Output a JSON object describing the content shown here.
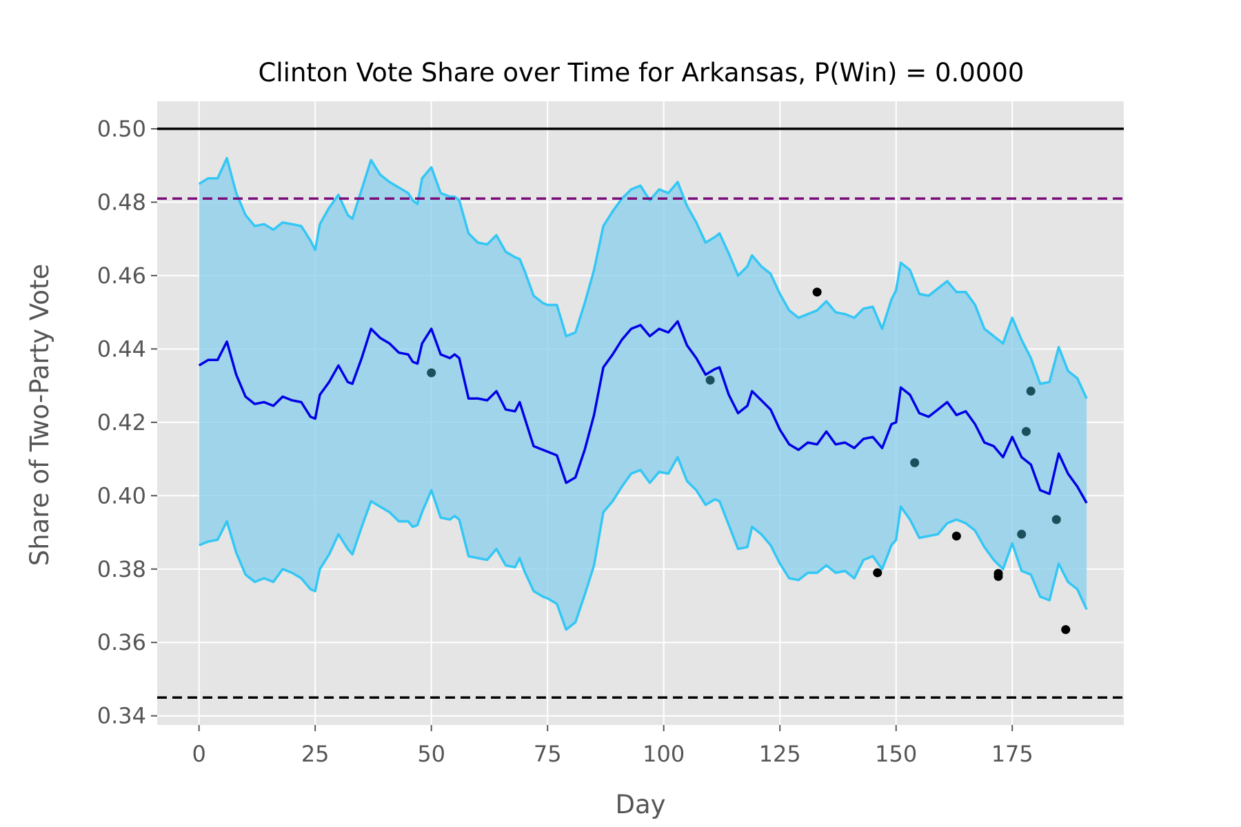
{
  "chart_data": {
    "type": "line",
    "title": "Clinton Vote Share over Time for Arkansas, P(Win) = 0.0000",
    "xlabel": "Day",
    "ylabel": "Share of Two-Party Vote",
    "xlim": [
      -9,
      199
    ],
    "ylim": [
      0.3375,
      0.5075
    ],
    "xticks": [
      0,
      25,
      50,
      75,
      100,
      125,
      150,
      175
    ],
    "xtick_labels": [
      "0",
      "25",
      "50",
      "75",
      "100",
      "125",
      "150",
      "175"
    ],
    "yticks": [
      0.34,
      0.36,
      0.38,
      0.4,
      0.42,
      0.44,
      0.46,
      0.48,
      0.5
    ],
    "ytick_labels": [
      "0.34",
      "0.36",
      "0.38",
      "0.40",
      "0.42",
      "0.44",
      "0.46",
      "0.48",
      "0.50"
    ],
    "grid": true,
    "reference_lines": [
      {
        "y": 0.5,
        "style": "solid",
        "color": "#000000"
      },
      {
        "y": 0.481,
        "style": "dashed",
        "color": "#7b0c7b"
      },
      {
        "y": 0.345,
        "style": "dashed",
        "color": "#000000"
      }
    ],
    "mean_series": {
      "color": "#0000e6",
      "points": [
        [
          0,
          0.4355
        ],
        [
          2,
          0.437
        ],
        [
          4,
          0.437
        ],
        [
          6,
          0.442
        ],
        [
          8,
          0.433
        ],
        [
          10,
          0.427
        ],
        [
          12,
          0.425
        ],
        [
          14,
          0.4255
        ],
        [
          16,
          0.4245
        ],
        [
          18,
          0.427
        ],
        [
          20,
          0.426
        ],
        [
          22,
          0.4255
        ],
        [
          24,
          0.4215
        ],
        [
          25,
          0.421
        ],
        [
          26,
          0.4275
        ],
        [
          28,
          0.431
        ],
        [
          30,
          0.4355
        ],
        [
          32,
          0.431
        ],
        [
          33,
          0.4305
        ],
        [
          35,
          0.4375
        ],
        [
          37,
          0.4455
        ],
        [
          39,
          0.443
        ],
        [
          41,
          0.4415
        ],
        [
          43,
          0.439
        ],
        [
          45,
          0.4385
        ],
        [
          46,
          0.4365
        ],
        [
          47,
          0.436
        ],
        [
          48,
          0.4415
        ],
        [
          50,
          0.4455
        ],
        [
          52,
          0.4385
        ],
        [
          54,
          0.4375
        ],
        [
          55,
          0.4385
        ],
        [
          56,
          0.4375
        ],
        [
          58,
          0.4265
        ],
        [
          60,
          0.4265
        ],
        [
          62,
          0.426
        ],
        [
          64,
          0.4285
        ],
        [
          66,
          0.4235
        ],
        [
          68,
          0.423
        ],
        [
          69,
          0.4255
        ],
        [
          70,
          0.4215
        ],
        [
          72,
          0.4135
        ],
        [
          74,
          0.4125
        ],
        [
          75,
          0.412
        ],
        [
          77,
          0.411
        ],
        [
          79,
          0.4035
        ],
        [
          81,
          0.405
        ],
        [
          83,
          0.4125
        ],
        [
          85,
          0.422
        ],
        [
          87,
          0.435
        ],
        [
          89,
          0.4385
        ],
        [
          91,
          0.4425
        ],
        [
          93,
          0.4455
        ],
        [
          95,
          0.4465
        ],
        [
          97,
          0.4435
        ],
        [
          99,
          0.4455
        ],
        [
          101,
          0.4445
        ],
        [
          103,
          0.4475
        ],
        [
          105,
          0.441
        ],
        [
          107,
          0.4375
        ],
        [
          109,
          0.433
        ],
        [
          111,
          0.4345
        ],
        [
          112,
          0.435
        ],
        [
          114,
          0.4275
        ],
        [
          116,
          0.4225
        ],
        [
          118,
          0.4245
        ],
        [
          119,
          0.4285
        ],
        [
          121,
          0.426
        ],
        [
          123,
          0.4235
        ],
        [
          125,
          0.418
        ],
        [
          127,
          0.414
        ],
        [
          129,
          0.4125
        ],
        [
          131,
          0.4145
        ],
        [
          133,
          0.414
        ],
        [
          135,
          0.4175
        ],
        [
          137,
          0.414
        ],
        [
          139,
          0.4145
        ],
        [
          141,
          0.413
        ],
        [
          143,
          0.4155
        ],
        [
          145,
          0.416
        ],
        [
          147,
          0.413
        ],
        [
          149,
          0.4195
        ],
        [
          150,
          0.42
        ],
        [
          151,
          0.4295
        ],
        [
          153,
          0.4275
        ],
        [
          155,
          0.4225
        ],
        [
          157,
          0.4215
        ],
        [
          159,
          0.4235
        ],
        [
          161,
          0.4255
        ],
        [
          163,
          0.422
        ],
        [
          165,
          0.423
        ],
        [
          167,
          0.4195
        ],
        [
          169,
          0.4145
        ],
        [
          171,
          0.4135
        ],
        [
          173,
          0.4105
        ],
        [
          175,
          0.416
        ],
        [
          177,
          0.4105
        ],
        [
          179,
          0.4085
        ],
        [
          181,
          0.4015
        ],
        [
          183,
          0.4005
        ],
        [
          185,
          0.4115
        ],
        [
          187,
          0.406
        ],
        [
          189,
          0.4025
        ],
        [
          191,
          0.398
        ]
      ]
    },
    "upper_series": {
      "color": "#33c7f5",
      "points": [
        [
          0,
          0.485
        ],
        [
          2,
          0.4865
        ],
        [
          4,
          0.4865
        ],
        [
          6,
          0.492
        ],
        [
          8,
          0.4825
        ],
        [
          10,
          0.4765
        ],
        [
          12,
          0.4735
        ],
        [
          14,
          0.474
        ],
        [
          16,
          0.4725
        ],
        [
          18,
          0.4745
        ],
        [
          20,
          0.474
        ],
        [
          22,
          0.4735
        ],
        [
          24,
          0.4695
        ],
        [
          25,
          0.467
        ],
        [
          26,
          0.474
        ],
        [
          28,
          0.4785
        ],
        [
          30,
          0.482
        ],
        [
          32,
          0.4765
        ],
        [
          33,
          0.4755
        ],
        [
          35,
          0.4835
        ],
        [
          37,
          0.4915
        ],
        [
          39,
          0.4875
        ],
        [
          41,
          0.4855
        ],
        [
          43,
          0.484
        ],
        [
          45,
          0.4825
        ],
        [
          46,
          0.4805
        ],
        [
          47,
          0.4795
        ],
        [
          48,
          0.4865
        ],
        [
          50,
          0.4895
        ],
        [
          52,
          0.4825
        ],
        [
          54,
          0.4815
        ],
        [
          55,
          0.4815
        ],
        [
          56,
          0.4805
        ],
        [
          58,
          0.4715
        ],
        [
          60,
          0.469
        ],
        [
          62,
          0.4685
        ],
        [
          64,
          0.471
        ],
        [
          66,
          0.4665
        ],
        [
          68,
          0.465
        ],
        [
          69,
          0.4645
        ],
        [
          70,
          0.4615
        ],
        [
          72,
          0.4545
        ],
        [
          74,
          0.4525
        ],
        [
          75,
          0.452
        ],
        [
          77,
          0.452
        ],
        [
          79,
          0.4435
        ],
        [
          81,
          0.4445
        ],
        [
          83,
          0.4525
        ],
        [
          85,
          0.4615
        ],
        [
          87,
          0.4735
        ],
        [
          89,
          0.4775
        ],
        [
          91,
          0.481
        ],
        [
          93,
          0.4835
        ],
        [
          95,
          0.4845
        ],
        [
          97,
          0.4805
        ],
        [
          99,
          0.4835
        ],
        [
          101,
          0.4825
        ],
        [
          103,
          0.4855
        ],
        [
          105,
          0.479
        ],
        [
          107,
          0.4745
        ],
        [
          109,
          0.469
        ],
        [
          111,
          0.4705
        ],
        [
          112,
          0.4715
        ],
        [
          114,
          0.466
        ],
        [
          116,
          0.46
        ],
        [
          118,
          0.4625
        ],
        [
          119,
          0.4655
        ],
        [
          121,
          0.4625
        ],
        [
          123,
          0.4605
        ],
        [
          125,
          0.455
        ],
        [
          127,
          0.4505
        ],
        [
          129,
          0.4485
        ],
        [
          131,
          0.4495
        ],
        [
          133,
          0.4505
        ],
        [
          135,
          0.453
        ],
        [
          137,
          0.45
        ],
        [
          139,
          0.4495
        ],
        [
          141,
          0.4485
        ],
        [
          143,
          0.451
        ],
        [
          145,
          0.4515
        ],
        [
          147,
          0.4455
        ],
        [
          149,
          0.4535
        ],
        [
          150,
          0.456
        ],
        [
          151,
          0.4635
        ],
        [
          153,
          0.4615
        ],
        [
          155,
          0.455
        ],
        [
          157,
          0.4545
        ],
        [
          159,
          0.4565
        ],
        [
          161,
          0.4585
        ],
        [
          163,
          0.4555
        ],
        [
          165,
          0.4555
        ],
        [
          167,
          0.452
        ],
        [
          169,
          0.4455
        ],
        [
          171,
          0.4435
        ],
        [
          173,
          0.4415
        ],
        [
          175,
          0.4485
        ],
        [
          177,
          0.4425
        ],
        [
          179,
          0.4375
        ],
        [
          181,
          0.4305
        ],
        [
          183,
          0.431
        ],
        [
          185,
          0.4405
        ],
        [
          187,
          0.434
        ],
        [
          189,
          0.432
        ],
        [
          191,
          0.4265
        ]
      ]
    },
    "lower_series": {
      "color": "#33c7f5",
      "points": [
        [
          0,
          0.3865
        ],
        [
          2,
          0.3875
        ],
        [
          4,
          0.388
        ],
        [
          6,
          0.393
        ],
        [
          8,
          0.3845
        ],
        [
          10,
          0.3785
        ],
        [
          12,
          0.3765
        ],
        [
          14,
          0.3775
        ],
        [
          16,
          0.3765
        ],
        [
          18,
          0.38
        ],
        [
          20,
          0.379
        ],
        [
          22,
          0.3775
        ],
        [
          24,
          0.3745
        ],
        [
          25,
          0.374
        ],
        [
          26,
          0.38
        ],
        [
          28,
          0.384
        ],
        [
          30,
          0.3895
        ],
        [
          32,
          0.3855
        ],
        [
          33,
          0.384
        ],
        [
          35,
          0.3915
        ],
        [
          37,
          0.3985
        ],
        [
          39,
          0.397
        ],
        [
          41,
          0.3955
        ],
        [
          43,
          0.393
        ],
        [
          45,
          0.393
        ],
        [
          46,
          0.3915
        ],
        [
          47,
          0.392
        ],
        [
          48,
          0.3955
        ],
        [
          50,
          0.4015
        ],
        [
          52,
          0.394
        ],
        [
          54,
          0.3935
        ],
        [
          55,
          0.3945
        ],
        [
          56,
          0.3935
        ],
        [
          58,
          0.3835
        ],
        [
          60,
          0.383
        ],
        [
          62,
          0.3825
        ],
        [
          64,
          0.3855
        ],
        [
          66,
          0.381
        ],
        [
          68,
          0.3805
        ],
        [
          69,
          0.383
        ],
        [
          70,
          0.3795
        ],
        [
          72,
          0.374
        ],
        [
          74,
          0.3725
        ],
        [
          75,
          0.372
        ],
        [
          77,
          0.3705
        ],
        [
          79,
          0.3635
        ],
        [
          81,
          0.3655
        ],
        [
          83,
          0.373
        ],
        [
          85,
          0.381
        ],
        [
          87,
          0.3955
        ],
        [
          89,
          0.3985
        ],
        [
          91,
          0.4025
        ],
        [
          93,
          0.406
        ],
        [
          95,
          0.407
        ],
        [
          97,
          0.4035
        ],
        [
          99,
          0.4065
        ],
        [
          101,
          0.406
        ],
        [
          103,
          0.4105
        ],
        [
          105,
          0.404
        ],
        [
          107,
          0.4015
        ],
        [
          109,
          0.3975
        ],
        [
          111,
          0.399
        ],
        [
          112,
          0.3985
        ],
        [
          114,
          0.392
        ],
        [
          116,
          0.3855
        ],
        [
          118,
          0.386
        ],
        [
          119,
          0.3915
        ],
        [
          121,
          0.3895
        ],
        [
          123,
          0.3865
        ],
        [
          125,
          0.3815
        ],
        [
          127,
          0.3775
        ],
        [
          129,
          0.377
        ],
        [
          131,
          0.379
        ],
        [
          133,
          0.379
        ],
        [
          135,
          0.381
        ],
        [
          137,
          0.379
        ],
        [
          139,
          0.3795
        ],
        [
          141,
          0.3775
        ],
        [
          143,
          0.3825
        ],
        [
          145,
          0.3835
        ],
        [
          147,
          0.38
        ],
        [
          149,
          0.3865
        ],
        [
          150,
          0.388
        ],
        [
          151,
          0.397
        ],
        [
          153,
          0.3935
        ],
        [
          155,
          0.3885
        ],
        [
          157,
          0.389
        ],
        [
          159,
          0.3895
        ],
        [
          161,
          0.3925
        ],
        [
          163,
          0.3935
        ],
        [
          165,
          0.3925
        ],
        [
          167,
          0.3905
        ],
        [
          169,
          0.386
        ],
        [
          171,
          0.3825
        ],
        [
          173,
          0.38
        ],
        [
          175,
          0.387
        ],
        [
          177,
          0.3795
        ],
        [
          179,
          0.3785
        ],
        [
          181,
          0.3725
        ],
        [
          183,
          0.3715
        ],
        [
          185,
          0.3815
        ],
        [
          187,
          0.3765
        ],
        [
          189,
          0.3745
        ],
        [
          191,
          0.369
        ]
      ]
    },
    "band": {
      "color": "#87ceeb",
      "opacity": 0.75
    },
    "polls": [
      {
        "x": 50,
        "y": 0.4335,
        "color": "#1b4f5c"
      },
      {
        "x": 110,
        "y": 0.4315,
        "color": "#1b4f5c"
      },
      {
        "x": 133,
        "y": 0.4555,
        "color": "#000000"
      },
      {
        "x": 146,
        "y": 0.379,
        "color": "#000000"
      },
      {
        "x": 154,
        "y": 0.409,
        "color": "#1b4f5c"
      },
      {
        "x": 163,
        "y": 0.389,
        "color": "#000000"
      },
      {
        "x": 172,
        "y": 0.378,
        "color": "#000000"
      },
      {
        "x": 172,
        "y": 0.3788,
        "color": "#000000"
      },
      {
        "x": 177,
        "y": 0.3895,
        "color": "#1b4f5c"
      },
      {
        "x": 178,
        "y": 0.4175,
        "color": "#1b4f5c"
      },
      {
        "x": 179,
        "y": 0.4285,
        "color": "#1b4f5c"
      },
      {
        "x": 184.5,
        "y": 0.3935,
        "color": "#1b4f5c"
      },
      {
        "x": 186.5,
        "y": 0.3635,
        "color": "#000000"
      }
    ],
    "colors": {
      "plot_background": "#e5e5e5",
      "grid": "#ffffff",
      "page_background": "#ffffff"
    }
  }
}
